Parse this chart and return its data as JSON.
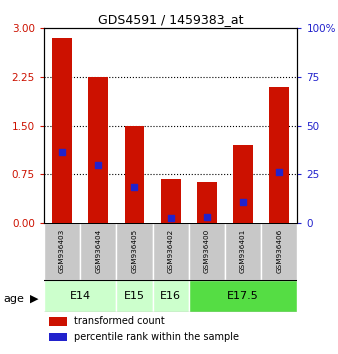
{
  "title": "GDS4591 / 1459383_at",
  "samples": [
    "GSM936403",
    "GSM936404",
    "GSM936405",
    "GSM936402",
    "GSM936400",
    "GSM936401",
    "GSM936406"
  ],
  "transformed_count": [
    2.85,
    2.25,
    1.5,
    0.68,
    0.63,
    1.2,
    2.1
  ],
  "percentile_rank_scaled": [
    1.1,
    0.9,
    0.55,
    0.07,
    0.1,
    0.32,
    0.78
  ],
  "age_spans": [
    {
      "label": "E14",
      "start": 0,
      "end": 2,
      "color": "#ccffcc"
    },
    {
      "label": "E15",
      "start": 2,
      "end": 3,
      "color": "#ccffcc"
    },
    {
      "label": "E16",
      "start": 3,
      "end": 4,
      "color": "#ccffcc"
    },
    {
      "label": "E17.5",
      "start": 4,
      "end": 7,
      "color": "#55dd44"
    }
  ],
  "bar_color": "#cc1100",
  "dot_color": "#2222cc",
  "ylim_left": [
    0,
    3
  ],
  "ylim_right": [
    0,
    100
  ],
  "yticks_left": [
    0,
    0.75,
    1.5,
    2.25,
    3
  ],
  "yticks_right": [
    0,
    25,
    50,
    75,
    100
  ],
  "bar_width": 0.55,
  "dot_size": 18,
  "legend_items": [
    "transformed count",
    "percentile rank within the sample"
  ],
  "legend_colors": [
    "#cc1100",
    "#2222cc"
  ],
  "sample_bg_color": "#c8c8c8",
  "ylabel_left_color": "#cc1100",
  "ylabel_right_color": "#2222cc",
  "e14_color": "#ccffcc",
  "e175_color": "#55ee44"
}
